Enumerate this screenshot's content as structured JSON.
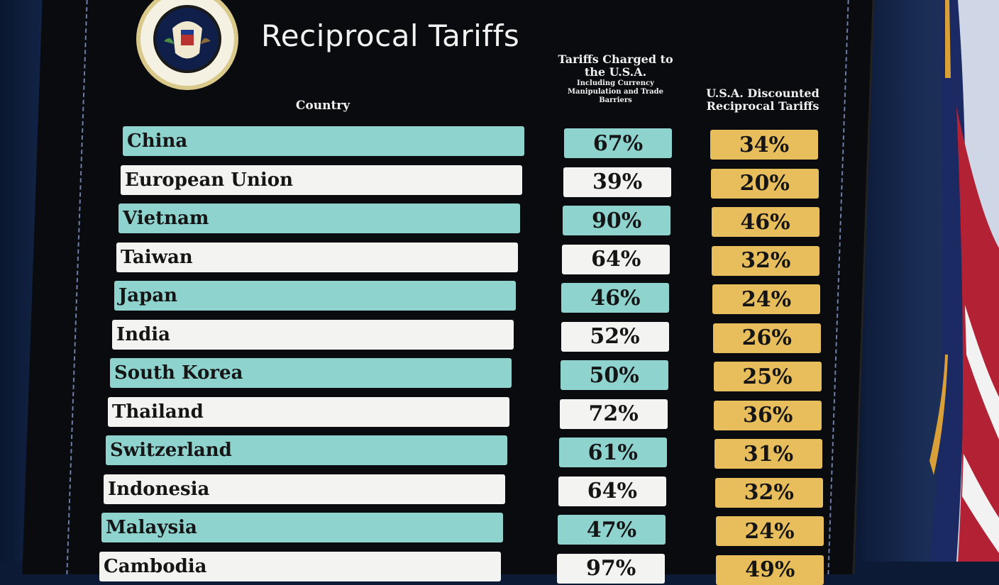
{
  "title": "Reciprocal Tariffs",
  "headers": {
    "country": "Country",
    "charged_main": "Tariffs Charged to the U.S.A.",
    "charged_sub": "Including Currency Manipulation and Trade Barriers",
    "discounted": "U.S.A. Discounted Reciprocal Tariffs"
  },
  "colors": {
    "teal": "#8fd3ce",
    "white": "#f3f3f1",
    "gold": "#e8be5c",
    "board": "#0a0b0e"
  },
  "rows": [
    {
      "country": "China",
      "charged": "67%",
      "reciprocal": "34%"
    },
    {
      "country": "European Union",
      "charged": "39%",
      "reciprocal": "20%"
    },
    {
      "country": "Vietnam",
      "charged": "90%",
      "reciprocal": "46%"
    },
    {
      "country": "Taiwan",
      "charged": "64%",
      "reciprocal": "32%"
    },
    {
      "country": "Japan",
      "charged": "46%",
      "reciprocal": "24%"
    },
    {
      "country": "India",
      "charged": "52%",
      "reciprocal": "26%"
    },
    {
      "country": "South Korea",
      "charged": "50%",
      "reciprocal": "25%"
    },
    {
      "country": "Thailand",
      "charged": "72%",
      "reciprocal": "36%"
    },
    {
      "country": "Switzerland",
      "charged": "61%",
      "reciprocal": "31%"
    },
    {
      "country": "Indonesia",
      "charged": "64%",
      "reciprocal": "32%"
    },
    {
      "country": "Malaysia",
      "charged": "47%",
      "reciprocal": "24%"
    },
    {
      "country": "Cambodia",
      "charged": "97%",
      "reciprocal": "49%"
    }
  ]
}
